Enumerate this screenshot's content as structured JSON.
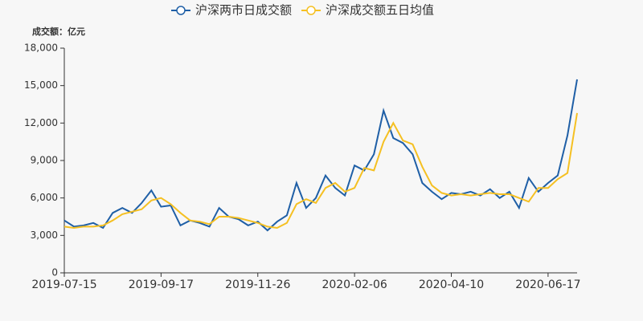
{
  "chart_data": {
    "type": "line",
    "legend_position": "top",
    "y_axis_label": "成交额：亿元",
    "categories": [
      "2019-07-15",
      null,
      null,
      null,
      null,
      null,
      null,
      null,
      null,
      null,
      "2019-09-17",
      null,
      null,
      null,
      null,
      null,
      null,
      null,
      null,
      null,
      "2019-11-26",
      null,
      null,
      null,
      null,
      null,
      null,
      null,
      null,
      null,
      "2020-02-06",
      null,
      null,
      null,
      null,
      null,
      null,
      null,
      null,
      null,
      "2020-04-10",
      null,
      null,
      null,
      null,
      null,
      null,
      null,
      null,
      null,
      "2020-06-17",
      null,
      null,
      null
    ],
    "series": [
      {
        "name": "沪深两市日成交额",
        "color": "#1f5fa6",
        "values": [
          4200,
          3700,
          3800,
          4000,
          3600,
          4800,
          5200,
          4800,
          5600,
          6600,
          5300,
          5400,
          3800,
          4200,
          4000,
          3700,
          5200,
          4500,
          4300,
          3800,
          4100,
          3400,
          4100,
          4600,
          7200,
          5200,
          6000,
          7800,
          6800,
          6200,
          8600,
          8200,
          9500,
          13000,
          10800,
          10400,
          9500,
          7200,
          6500,
          5900,
          6400,
          6300,
          6500,
          6200,
          6700,
          6000,
          6500,
          5200,
          7600,
          6500,
          7200,
          7800,
          11000,
          15500
        ]
      },
      {
        "name": "沪深成交额五日均值",
        "color": "#f5c022",
        "values": [
          3700,
          3600,
          3700,
          3700,
          3800,
          4200,
          4700,
          4900,
          5100,
          5800,
          6000,
          5500,
          4800,
          4200,
          4100,
          3900,
          4500,
          4500,
          4400,
          4200,
          4000,
          3700,
          3600,
          4000,
          5500,
          5900,
          5600,
          6800,
          7200,
          6500,
          6800,
          8400,
          8200,
          10500,
          12000,
          10600,
          10300,
          8500,
          7000,
          6400,
          6200,
          6300,
          6200,
          6300,
          6400,
          6300,
          6300,
          6000,
          5700,
          6800,
          6800,
          7500,
          8000,
          12800
        ]
      }
    ],
    "ylim": [
      0,
      18000
    ],
    "yticks": [
      0,
      {
        "value": 3000,
        "label": "3,000"
      },
      {
        "value": 6000,
        "label": "6,000"
      },
      {
        "value": 9000,
        "label": "9,000"
      },
      {
        "value": 12000,
        "label": "12,000"
      },
      {
        "value": 15000,
        "label": "15,000"
      },
      {
        "value": 18000,
        "label": "18,000"
      }
    ]
  }
}
